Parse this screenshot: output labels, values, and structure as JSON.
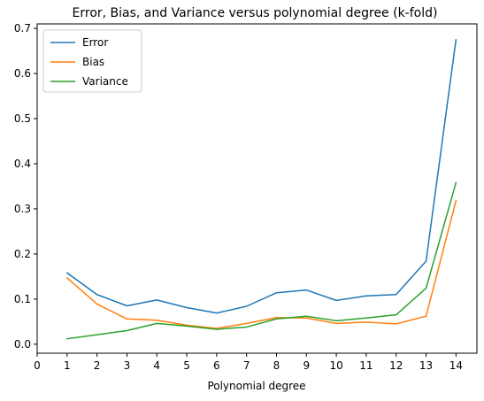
{
  "chart_data": {
    "type": "line",
    "title": "Error, Bias, and Variance versus polynomial degree (k-fold)",
    "xlabel": "Polynomial degree",
    "ylabel": "",
    "xlim": [
      0,
      14.7
    ],
    "ylim": [
      -0.02,
      0.71
    ],
    "xticks": [
      0,
      1,
      2,
      3,
      4,
      5,
      6,
      7,
      8,
      9,
      10,
      11,
      12,
      13,
      14
    ],
    "yticks": [
      0.0,
      0.1,
      0.2,
      0.3,
      0.4,
      0.5,
      0.6,
      0.7
    ],
    "ytick_labels": [
      "0.0",
      "0.1",
      "0.2",
      "0.3",
      "0.4",
      "0.5",
      "0.6",
      "0.7"
    ],
    "grid": false,
    "legend_position": "top-left",
    "x": [
      1,
      2,
      3,
      4,
      5,
      6,
      7,
      8,
      9,
      10,
      11,
      12,
      13,
      14
    ],
    "series": [
      {
        "name": "Error",
        "color": "#1f77b4",
        "values": [
          0.158,
          0.11,
          0.085,
          0.098,
          0.081,
          0.069,
          0.084,
          0.114,
          0.12,
          0.097,
          0.107,
          0.11,
          0.184,
          0.675
        ]
      },
      {
        "name": "Bias",
        "color": "#ff7f0e",
        "values": [
          0.147,
          0.089,
          0.056,
          0.053,
          0.042,
          0.035,
          0.046,
          0.059,
          0.058,
          0.046,
          0.049,
          0.045,
          0.062,
          0.318
        ]
      },
      {
        "name": "Variance",
        "color": "#2ca02c",
        "values": [
          0.012,
          0.021,
          0.03,
          0.046,
          0.04,
          0.033,
          0.038,
          0.056,
          0.062,
          0.052,
          0.058,
          0.065,
          0.124,
          0.358
        ]
      }
    ]
  }
}
